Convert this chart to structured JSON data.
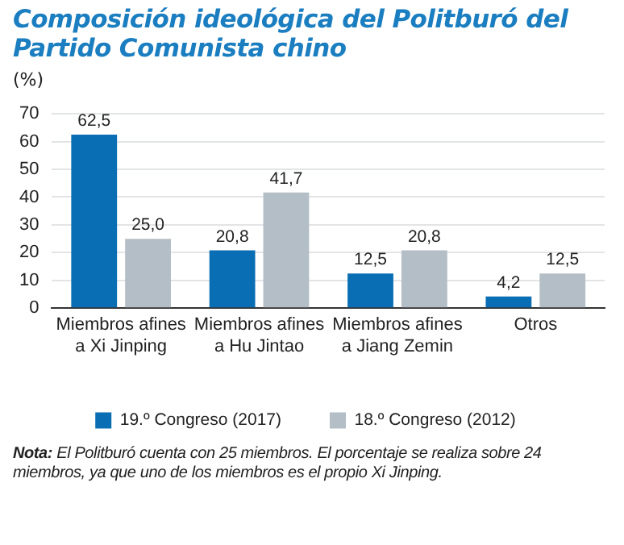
{
  "chart_data": {
    "type": "bar",
    "title": "Composición ideológica del Politburó del Partido Comunista chino",
    "ylabel": "(%)",
    "categories": [
      "Miembros afines\na Xi Jinping",
      "Miembros afines\na Hu Jintao",
      "Miembros afines\na Jiang Zemin",
      "Otros"
    ],
    "series": [
      {
        "name": "19.º Congreso (2017)",
        "color": "#0a6eb4",
        "values": [
          62.5,
          20.8,
          12.5,
          4.2
        ],
        "value_labels": [
          "62,5",
          "20,8",
          "12,5",
          "4,2"
        ]
      },
      {
        "name": "18.º Congreso (2012)",
        "color": "#b4bec6",
        "values": [
          25.0,
          41.7,
          20.8,
          12.5
        ],
        "value_labels": [
          "25,0",
          "41,7",
          "20,8",
          "12,5"
        ]
      }
    ],
    "ylim": [
      0,
      70
    ],
    "yticks": [
      0,
      10,
      20,
      30,
      40,
      50,
      60,
      70
    ],
    "grid": "y",
    "legend": "bottom",
    "annotations": [
      "Nota: El Politburó cuenta con 25 miembros. El porcentaje se realiza sobre 24 miembros, ya que uno de los miembros es el propio Xi Jinping."
    ]
  }
}
